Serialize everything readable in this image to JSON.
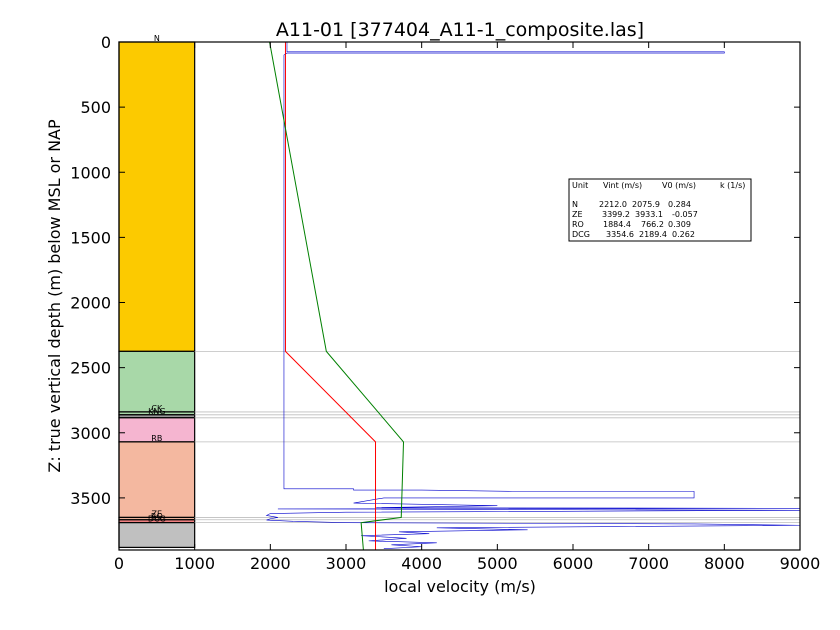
{
  "chart_data": {
    "type": "line",
    "title": "A11-01 [377404_A11-1_composite.las]",
    "xlabel": "local velocity (m/s)",
    "ylabel": "Z: true vertical depth (m) below MSL or NAP",
    "xlim": [
      0,
      9000
    ],
    "ylim": [
      3900,
      0
    ],
    "xticks": [
      "0",
      "1000",
      "2000",
      "3000",
      "4000",
      "5000",
      "6000",
      "7000",
      "8000",
      "9000"
    ],
    "yticks": [
      "0",
      "500",
      "1000",
      "1500",
      "2000",
      "2500",
      "3000",
      "3500"
    ],
    "units": [
      {
        "label": "N",
        "top": 0,
        "bottom": 2375,
        "color": "#fcca00"
      },
      {
        "label": "",
        "top": 2375,
        "bottom": 2840,
        "color": "#a8d8a8"
      },
      {
        "label": "CK",
        "top": 2840,
        "bottom": 2862,
        "color": "#a8d8a8"
      },
      {
        "label": "KNG",
        "top": 2862,
        "bottom": 2885,
        "color": "#999999"
      },
      {
        "label": "",
        "top": 2885,
        "bottom": 3070,
        "color": "#f5b5d0"
      },
      {
        "label": "RB",
        "top": 3070,
        "bottom": 3650,
        "color": "#f4b8a0"
      },
      {
        "label": "ZE",
        "top": 3650,
        "bottom": 3668,
        "color": "#f4b8a0"
      },
      {
        "label": "RO",
        "top": 3668,
        "bottom": 3690,
        "color": "#f08080"
      },
      {
        "label": "DCG",
        "top": 3690,
        "bottom": 3880,
        "color": "#c0c0c0"
      }
    ],
    "boundary_lines": [
      2375,
      2840,
      2862,
      2885,
      3070,
      3650,
      3668,
      3690
    ],
    "series": [
      {
        "color": "#ff0000",
        "points": [
          [
            2200,
            0
          ],
          [
            2200,
            2375
          ],
          [
            3390,
            3070
          ],
          [
            3390,
            3650
          ],
          [
            3390,
            3900
          ]
        ]
      },
      {
        "color": "#008000",
        "points": [
          [
            1990,
            0
          ],
          [
            2740,
            2375
          ],
          [
            3760,
            3070
          ],
          [
            3730,
            3650
          ],
          [
            3200,
            3690
          ],
          [
            3230,
            3900
          ]
        ]
      }
    ],
    "table": {
      "header": [
        "Unit",
        "Vint (m/s)",
        "V0 (m/s)",
        "k (1/s)"
      ],
      "rows": [
        [
          "N",
          "2212.0",
          "2075.9",
          "0.284"
        ],
        [
          "ZE",
          "3399.2",
          "3933.1",
          "-0.057"
        ],
        [
          "RO",
          "1884.4",
          "766.2",
          "0.309"
        ],
        [
          "DCG",
          "3354.6",
          "2189.4",
          "0.262"
        ]
      ]
    }
  }
}
